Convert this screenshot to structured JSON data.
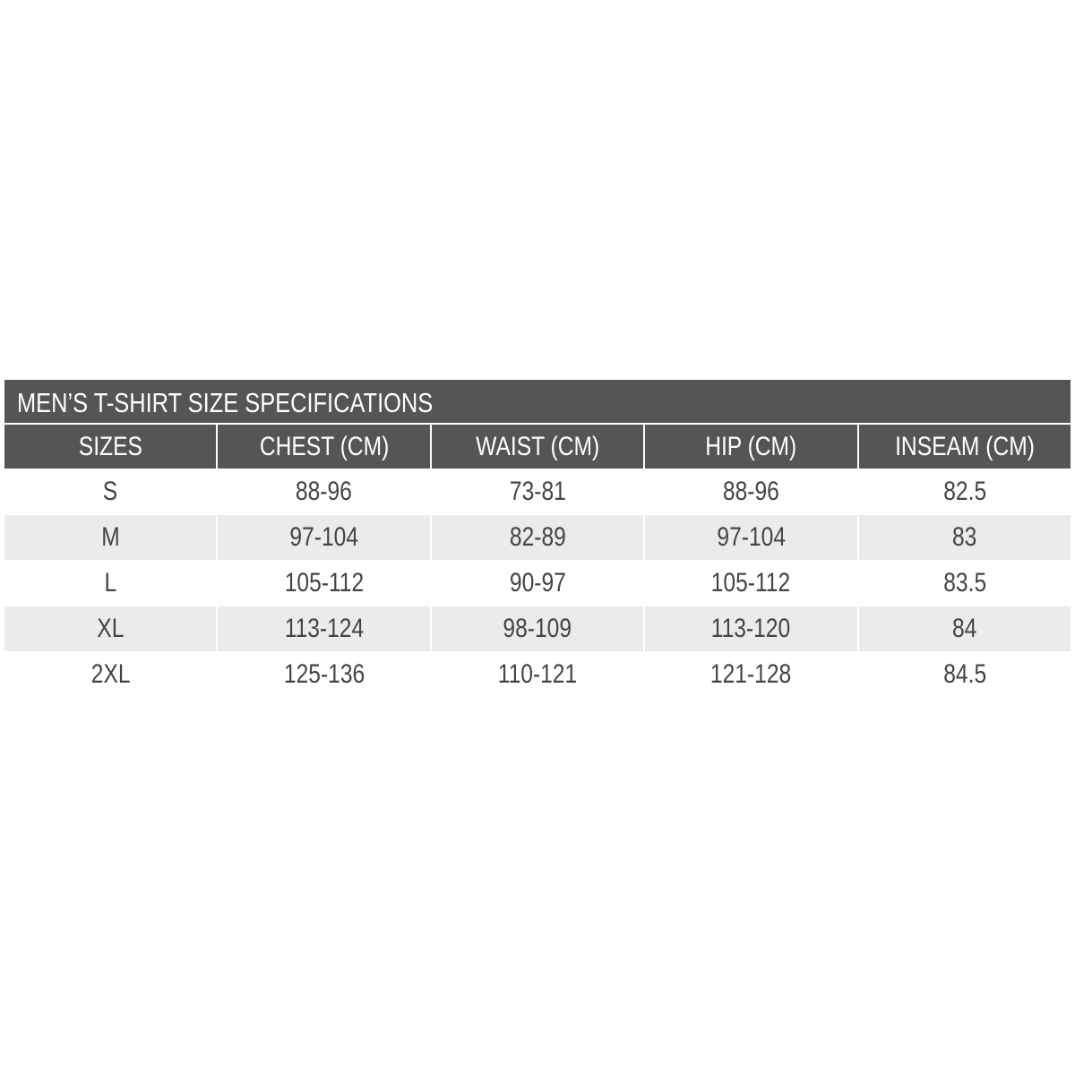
{
  "table": {
    "title": "MEN’S T-SHIRT SIZE SPECIFICATIONS",
    "headers": [
      "SIZES",
      "CHEST (CM)",
      "WAIST (CM)",
      "HIP (CM)",
      "INSEAM (CM)"
    ],
    "rows": [
      [
        "S",
        "88-96",
        "73-81",
        "88-96",
        "82.5"
      ],
      [
        "M",
        "97-104",
        "82-89",
        "97-104",
        "83"
      ],
      [
        "L",
        "105-112",
        "90-97",
        "105-112",
        "83.5"
      ],
      [
        "XL",
        "113-124",
        "98-109",
        "113-120",
        "84"
      ],
      [
        "2XL",
        "125-136",
        "110-121",
        "121-128",
        "84.5"
      ]
    ]
  }
}
